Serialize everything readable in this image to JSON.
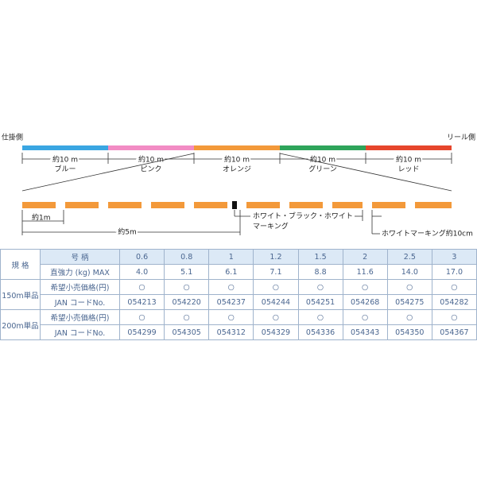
{
  "diagram": {
    "left_end": "仕掛側",
    "right_end": "リール側",
    "segments": [
      {
        "length": "約10 m",
        "color_name": "ブルー",
        "color": "#3aa6e2"
      },
      {
        "length": "約10 m",
        "color_name": "ピンク",
        "color": "#f28cc4"
      },
      {
        "length": "約10 m",
        "color_name": "オレンジ",
        "color": "#f3993a"
      },
      {
        "length": "約10 m",
        "color_name": "グリーン",
        "color": "#2ea45a"
      },
      {
        "length": "約10 m",
        "color_name": "レッド",
        "color": "#e6462c"
      }
    ],
    "one_m": "約1m",
    "five_m": "約5m",
    "marking_line1": "ホワイト・ブラック・ホワイト",
    "marking_line2": "マーキング",
    "white_marking": "ホワイトマーキング約10cm"
  },
  "table": {
    "spec_label": "規 格",
    "size_label": "号 柄",
    "sizes": [
      "0.6",
      "0.8",
      "1",
      "1.2",
      "1.5",
      "2",
      "2.5",
      "3"
    ],
    "strength": {
      "label": "直強力 (kg) MAX",
      "values": [
        "4.0",
        "5.1",
        "6.1",
        "7.1",
        "8.8",
        "11.6",
        "14.0",
        "17.0"
      ]
    },
    "groups": [
      {
        "name": "150m単品",
        "price_label": "希望小売価格(円)",
        "prices": [
          "○",
          "○",
          "○",
          "○",
          "○",
          "○",
          "○",
          "○"
        ],
        "jan_label": "JAN コードNo.",
        "codes": [
          "054213",
          "054220",
          "054237",
          "054244",
          "054251",
          "054268",
          "054275",
          "054282"
        ]
      },
      {
        "name": "200m単品",
        "price_label": "希望小売価格(円)",
        "prices": [
          "○",
          "○",
          "○",
          "○",
          "○",
          "○",
          "○",
          "○"
        ],
        "jan_label": "JAN コードNo.",
        "codes": [
          "054299",
          "054305",
          "054312",
          "054329",
          "054336",
          "054343",
          "054350",
          "054367"
        ]
      }
    ]
  }
}
